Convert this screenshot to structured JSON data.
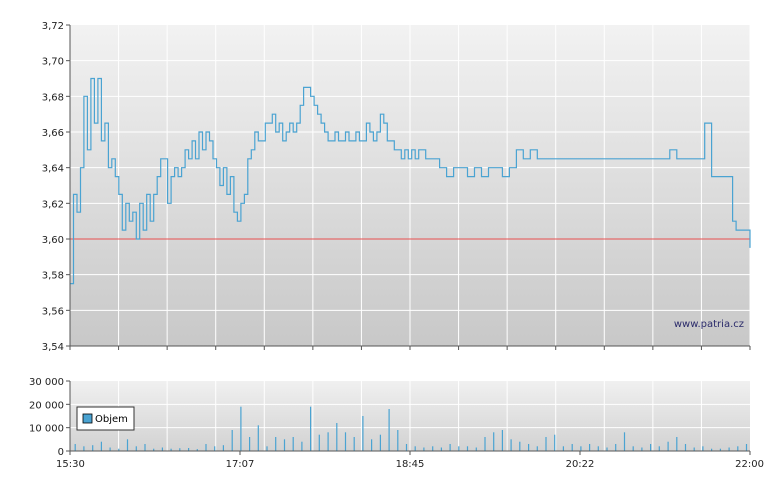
{
  "watermark": "www.patria.cz",
  "legend_label": "Objem",
  "colors": {
    "price_line": "#4aa3d2",
    "reference_line": "#e85050",
    "volume_bar": "#4aa3d2",
    "grid": "#ffffff",
    "axis": "#555555"
  },
  "chart_data": [
    {
      "type": "line",
      "title": "",
      "xlabel": "",
      "ylabel": "",
      "x_tick_labels": [
        "15:30",
        "17:07",
        "18:45",
        "20:22",
        "22:00"
      ],
      "y_tick_labels": [
        "3,54",
        "3,56",
        "3,58",
        "3,60",
        "3,62",
        "3,64",
        "3,66",
        "3,68",
        "3,70",
        "3,72"
      ],
      "ylim": [
        3.54,
        3.72
      ],
      "xlim_minutes": [
        0,
        390
      ],
      "reference_value": 3.6,
      "grid": true,
      "series": [
        {
          "x_minutes": [
            0,
            2,
            4,
            6,
            8,
            10,
            12,
            14,
            16,
            18,
            20,
            22,
            24,
            26,
            28,
            30,
            32,
            34,
            36,
            38,
            40,
            42,
            44,
            46,
            48,
            50,
            52,
            54,
            56,
            58,
            60,
            62,
            64,
            66,
            68,
            70,
            72,
            74,
            76,
            78,
            80,
            82,
            84,
            86,
            88,
            90,
            92,
            94,
            96,
            98,
            100,
            102,
            104,
            106,
            108,
            110,
            112,
            114,
            116,
            118,
            120,
            122,
            124,
            126,
            128,
            130,
            132,
            134,
            136,
            138,
            140,
            142,
            144,
            146,
            148,
            150,
            152,
            154,
            156,
            158,
            160,
            162,
            164,
            166,
            168,
            170,
            172,
            174,
            176,
            178,
            180,
            182,
            184,
            186,
            188,
            190,
            192,
            194,
            196,
            198,
            200,
            204,
            208,
            212,
            216,
            220,
            224,
            228,
            232,
            236,
            240,
            244,
            248,
            252,
            256,
            260,
            264,
            268,
            272,
            276,
            280,
            284,
            288,
            292,
            296,
            300,
            304,
            308,
            312,
            316,
            320,
            324,
            328,
            332,
            336,
            340,
            344,
            348,
            352,
            356,
            360,
            364,
            368,
            372,
            376,
            378,
            380,
            382,
            384,
            386,
            388,
            390
          ],
          "values": [
            3.575,
            3.625,
            3.615,
            3.64,
            3.68,
            3.65,
            3.69,
            3.665,
            3.69,
            3.655,
            3.665,
            3.64,
            3.645,
            3.635,
            3.625,
            3.605,
            3.62,
            3.61,
            3.615,
            3.6,
            3.62,
            3.605,
            3.625,
            3.61,
            3.625,
            3.635,
            3.645,
            3.645,
            3.62,
            3.635,
            3.64,
            3.635,
            3.64,
            3.65,
            3.645,
            3.655,
            3.645,
            3.66,
            3.65,
            3.66,
            3.655,
            3.645,
            3.64,
            3.63,
            3.64,
            3.625,
            3.635,
            3.615,
            3.61,
            3.62,
            3.625,
            3.645,
            3.65,
            3.66,
            3.655,
            3.655,
            3.665,
            3.665,
            3.67,
            3.66,
            3.665,
            3.655,
            3.66,
            3.665,
            3.66,
            3.665,
            3.675,
            3.685,
            3.685,
            3.68,
            3.675,
            3.67,
            3.665,
            3.66,
            3.655,
            3.655,
            3.66,
            3.655,
            3.655,
            3.66,
            3.655,
            3.655,
            3.66,
            3.655,
            3.655,
            3.665,
            3.66,
            3.655,
            3.66,
            3.67,
            3.665,
            3.655,
            3.655,
            3.65,
            3.65,
            3.645,
            3.65,
            3.645,
            3.65,
            3.645,
            3.65,
            3.645,
            3.645,
            3.64,
            3.635,
            3.64,
            3.64,
            3.635,
            3.64,
            3.635,
            3.64,
            3.64,
            3.635,
            3.64,
            3.65,
            3.645,
            3.65,
            3.645,
            3.645,
            3.645,
            3.645,
            3.645,
            3.645,
            3.645,
            3.645,
            3.645,
            3.645,
            3.645,
            3.645,
            3.645,
            3.645,
            3.645,
            3.645,
            3.645,
            3.645,
            3.645,
            3.65,
            3.645,
            3.645,
            3.645,
            3.645,
            3.665,
            3.635,
            3.635,
            3.635,
            3.635,
            3.61,
            3.605,
            3.605,
            3.605,
            3.605,
            3.595
          ]
        }
      ]
    },
    {
      "type": "bar",
      "title": "",
      "xlabel": "",
      "ylabel": "",
      "series_name": "Objem",
      "y_tick_labels": [
        "0",
        "10 000",
        "20 000",
        "30 000"
      ],
      "ylim": [
        0,
        30000
      ],
      "xlim_minutes": [
        0,
        390
      ],
      "grid": true,
      "x_minutes": [
        3,
        8,
        13,
        18,
        23,
        28,
        33,
        38,
        43,
        48,
        53,
        58,
        63,
        68,
        73,
        78,
        83,
        88,
        93,
        98,
        103,
        108,
        113,
        118,
        123,
        128,
        133,
        138,
        143,
        148,
        153,
        158,
        163,
        168,
        173,
        178,
        183,
        188,
        193,
        198,
        203,
        208,
        213,
        218,
        223,
        228,
        233,
        238,
        243,
        248,
        253,
        258,
        263,
        268,
        273,
        278,
        283,
        288,
        293,
        298,
        303,
        308,
        313,
        318,
        323,
        328,
        333,
        338,
        343,
        348,
        353,
        358,
        363,
        368,
        373,
        378,
        383,
        388
      ],
      "values": [
        3000,
        2000,
        2500,
        4000,
        1500,
        1000,
        5000,
        2000,
        3000,
        1000,
        1500,
        1000,
        1200,
        1300,
        800,
        3000,
        2000,
        2500,
        9000,
        19000,
        6000,
        11000,
        2000,
        6000,
        5000,
        6000,
        4000,
        19000,
        7000,
        8000,
        12000,
        8000,
        6000,
        15000,
        5000,
        7000,
        18000,
        9000,
        3000,
        2000,
        1500,
        2000,
        1500,
        3000,
        2000,
        2000,
        1500,
        6000,
        8000,
        9000,
        5000,
        4000,
        3000,
        2000,
        6000,
        7000,
        2000,
        3000,
        2000,
        3000,
        2000,
        1500,
        3000,
        8000,
        2000,
        1500,
        3000,
        2000,
        4000,
        6000,
        3000,
        1500,
        2000,
        1000,
        1000,
        1500,
        2000,
        3000
      ]
    }
  ]
}
